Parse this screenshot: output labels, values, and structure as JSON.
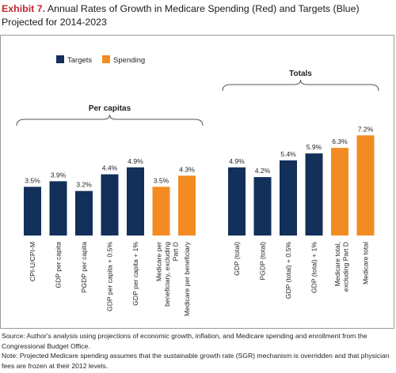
{
  "title": {
    "label": "Exhibit 7.",
    "text": "Annual Rates of Growth in Medicare Spending (Red) and Targets (Blue) Projected for 2014-2023"
  },
  "footnotes": {
    "source": "Source: Author's analysis using projections of economic growth, inflation, and Medicare spending and enrollment from the Congressional Budget Office.",
    "note": "Note: Projected Medicare spending assumes that the sustainable growth rate (SGR) mechanism is overridden and that physician fees are frozen at their 2012 levels."
  },
  "colors": {
    "targets": "#13305a",
    "spending": "#f28c22",
    "frame": "#9a9a9a",
    "brace": "#555555"
  },
  "chart_data": {
    "type": "bar",
    "ylim": [
      0,
      8
    ],
    "legend": {
      "placement": "top-left",
      "entries": [
        {
          "name": "Targets",
          "color": "#13305a"
        },
        {
          "name": "Spending",
          "color": "#f28c22"
        }
      ]
    },
    "groups": [
      {
        "label": "Per capitas",
        "bars": [
          {
            "category": "CPI-U/CPI-M",
            "value": 3.5,
            "label": "3.5%",
            "series": "Targets"
          },
          {
            "category": "GDP per capita",
            "value": 3.9,
            "label": "3.9%",
            "series": "Targets"
          },
          {
            "category": "PGDP per capita",
            "value": 3.2,
            "label": "3.2%",
            "series": "Targets"
          },
          {
            "category": "GDP per capita + 0.5%",
            "value": 4.4,
            "label": "4.4%",
            "series": "Targets"
          },
          {
            "category": "GDP per capita + 1%",
            "value": 4.9,
            "label": "4.9%",
            "series": "Targets"
          },
          {
            "category": "Medicare per beneficiary, excluding Part D",
            "value": 3.5,
            "label": "3.5%",
            "series": "Spending"
          },
          {
            "category": "Medicare per beneficiary",
            "value": 4.3,
            "label": "4.3%",
            "series": "Spending"
          }
        ]
      },
      {
        "label": "Totals",
        "bars": [
          {
            "category": "GDP (total)",
            "value": 4.9,
            "label": "4.9%",
            "series": "Targets"
          },
          {
            "category": "PGDP (total)",
            "value": 4.2,
            "label": "4.2%",
            "series": "Targets"
          },
          {
            "category": "GDP (total) + 0.5%",
            "value": 5.4,
            "label": "5.4%",
            "series": "Targets"
          },
          {
            "category": "GDP (total) + 1%",
            "value": 5.9,
            "label": "5.9%",
            "series": "Targets"
          },
          {
            "category": "Medicare total, excluding Part D",
            "value": 6.3,
            "label": "6.3%",
            "series": "Spending"
          },
          {
            "category": "Medicare total",
            "value": 7.2,
            "label": "7.2%",
            "series": "Spending"
          }
        ]
      }
    ]
  }
}
